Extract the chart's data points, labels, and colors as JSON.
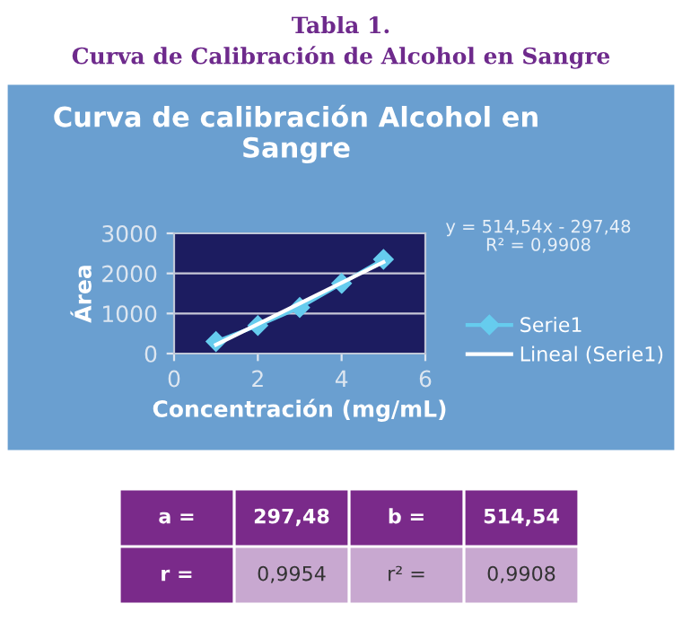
{
  "chart_data": {
    "type": "line",
    "title": "Curva de calibración Alcohol en Sangre",
    "xlabel": "Concentración (mg/mL)",
    "ylabel": "Área",
    "xlim": [
      0,
      6
    ],
    "xticks": [
      0,
      2,
      4,
      6
    ],
    "ylim": [
      0,
      3000
    ],
    "yticks": [
      0,
      1000,
      2000,
      3000
    ],
    "grid": "y",
    "legend": "right",
    "series": [
      {
        "name": "Serie1",
        "marker": "diamond",
        "color": "#66ccee",
        "x": [
          1,
          2,
          3,
          4,
          5
        ],
        "values": [
          300,
          700,
          1150,
          1750,
          2350
        ]
      },
      {
        "name": "Lineal (Serie1)",
        "marker": "none",
        "color": "#ffffff",
        "x": [
          1,
          5
        ],
        "values": [
          220,
          2280
        ]
      }
    ],
    "annotations": [
      "Tabla 1.",
      "Curva de Calibración de Alcohol en Sangre",
      "y = 514,54x - 297,48\nR² = 0,9908",
      "a =",
      "297,48",
      "b =",
      "514,54",
      "r =",
      "0,9954",
      "r² =",
      "0,9908"
    ]
  }
}
